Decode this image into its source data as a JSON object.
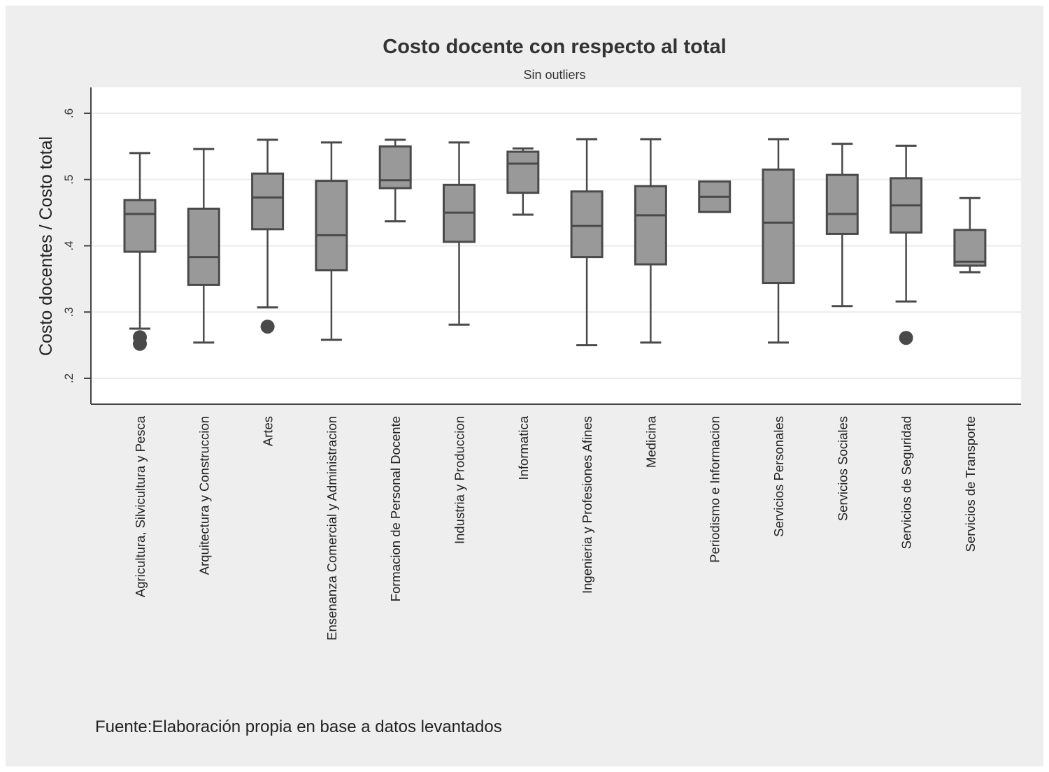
{
  "chart_data": {
    "type": "box",
    "title": "Costo docente con respecto al total",
    "subtitle": "Sin outliers",
    "ylabel": "Costo docentes / Costo total",
    "xlabel": "",
    "ylim": [
      0.18,
      0.64
    ],
    "yticks": [
      0.2,
      0.3,
      0.4,
      0.5,
      0.6
    ],
    "ytick_labels": [
      ".2",
      ".3",
      ".4",
      ".5",
      ".6"
    ],
    "grid": true,
    "legend": "none",
    "box_color": "#999999",
    "line_color": "#4a4a4a",
    "categories": [
      "Agricultura, Silvicultura y Pesca",
      "Arquitectura y Construccion",
      "Artes",
      "Ensenanza Comercial y Administracion",
      "Formacion de Personal Docente",
      "Industria y Produccion",
      "Informatica",
      "Ingenieria y Profesiones Afines",
      "Medicina",
      "Periodismo e Informacion",
      "Servicios Personales",
      "Servicios Sociales",
      "Servicios de Seguridad",
      "Servicios de Transporte"
    ],
    "boxes": [
      {
        "min": 0.275,
        "q1": 0.391,
        "median": 0.448,
        "q3": 0.469,
        "max": 0.54,
        "outliers": [
          0.262,
          0.252
        ]
      },
      {
        "min": 0.254,
        "q1": 0.341,
        "median": 0.383,
        "q3": 0.456,
        "max": 0.546,
        "outliers": []
      },
      {
        "min": 0.307,
        "q1": 0.425,
        "median": 0.473,
        "q3": 0.509,
        "max": 0.56,
        "outliers": [
          0.278
        ]
      },
      {
        "min": 0.258,
        "q1": 0.363,
        "median": 0.416,
        "q3": 0.498,
        "max": 0.556,
        "outliers": []
      },
      {
        "min": 0.437,
        "q1": 0.487,
        "median": 0.499,
        "q3": 0.55,
        "max": 0.56,
        "outliers": []
      },
      {
        "min": 0.281,
        "q1": 0.406,
        "median": 0.45,
        "q3": 0.492,
        "max": 0.556,
        "outliers": []
      },
      {
        "min": 0.447,
        "q1": 0.48,
        "median": 0.524,
        "q3": 0.542,
        "max": 0.547,
        "outliers": []
      },
      {
        "min": 0.25,
        "q1": 0.383,
        "median": 0.43,
        "q3": 0.482,
        "max": 0.561,
        "outliers": []
      },
      {
        "min": 0.254,
        "q1": 0.372,
        "median": 0.446,
        "q3": 0.49,
        "max": 0.561,
        "outliers": []
      },
      {
        "min": 0.451,
        "q1": 0.451,
        "median": 0.474,
        "q3": 0.497,
        "max": 0.497,
        "outliers": []
      },
      {
        "min": 0.254,
        "q1": 0.344,
        "median": 0.435,
        "q3": 0.515,
        "max": 0.561,
        "outliers": []
      },
      {
        "min": 0.309,
        "q1": 0.418,
        "median": 0.448,
        "q3": 0.507,
        "max": 0.554,
        "outliers": []
      },
      {
        "min": 0.316,
        "q1": 0.42,
        "median": 0.461,
        "q3": 0.502,
        "max": 0.551,
        "outliers": [
          0.261
        ]
      },
      {
        "min": 0.36,
        "q1": 0.37,
        "median": 0.376,
        "q3": 0.424,
        "max": 0.472,
        "outliers": []
      }
    ]
  },
  "footer": {
    "source": "Fuente:Elaboración propia en base a datos levantados"
  }
}
